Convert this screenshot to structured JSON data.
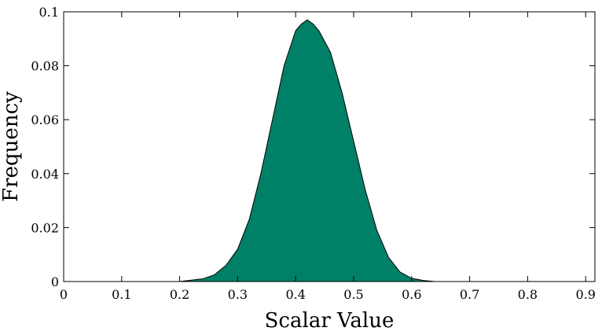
{
  "chart_data": {
    "type": "area",
    "xlabel": "Scalar Value",
    "ylabel": "Frequency",
    "xlim": [
      0,
      0.916
    ],
    "ylim": [
      0,
      0.1
    ],
    "xticks": [
      "0",
      "0.1",
      "0.2",
      "0.3",
      "0.4",
      "0.5",
      "0.6",
      "0.7",
      "0.8",
      "0.9"
    ],
    "yticks": [
      "0",
      "0.02",
      "0.04",
      "0.06",
      "0.08",
      "0.1"
    ],
    "grid": false,
    "legend": "none",
    "fill_color": "#008066",
    "series": [
      {
        "x": [
          0.0,
          0.2,
          0.22,
          0.24,
          0.26,
          0.28,
          0.3,
          0.32,
          0.34,
          0.36,
          0.38,
          0.4,
          0.41,
          0.42,
          0.43,
          0.44,
          0.46,
          0.48,
          0.5,
          0.52,
          0.54,
          0.56,
          0.58,
          0.6,
          0.62,
          0.64,
          0.916
        ],
        "values": [
          0.0,
          0.0,
          0.0005,
          0.001,
          0.0025,
          0.006,
          0.012,
          0.023,
          0.04,
          0.06,
          0.08,
          0.093,
          0.0955,
          0.097,
          0.0955,
          0.093,
          0.085,
          0.07,
          0.052,
          0.034,
          0.019,
          0.009,
          0.0035,
          0.0012,
          0.0004,
          0.0,
          0.0
        ]
      }
    ]
  }
}
